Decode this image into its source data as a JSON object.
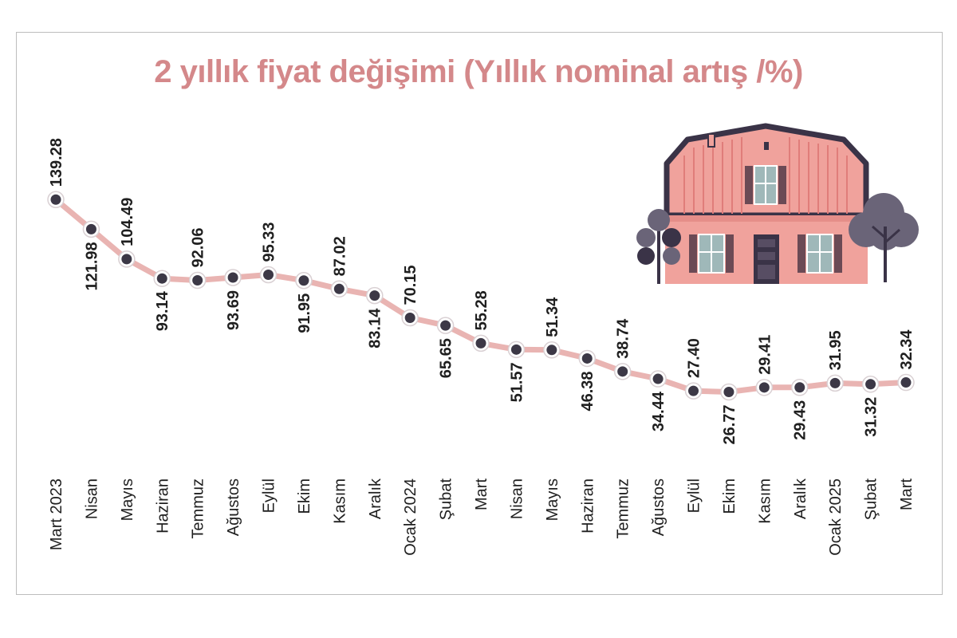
{
  "title": "2 yıllık fiyat değişimi (Yıllık nominal artış /%)",
  "colors": {
    "title": "#d4888a",
    "line": "#e9b4b2",
    "marker_fill": "#3c3846",
    "marker_ring": "#ffffff",
    "house_wall": "#f0a29c",
    "house_roof_line": "#3a3347"
  },
  "icons": [
    "house-illustration",
    "tree-icon"
  ],
  "chart_data": {
    "type": "line",
    "title": "2 yıllık fiyat değişimi (Yıllık nominal artış /%)",
    "xlabel": "",
    "ylabel": "",
    "grid": false,
    "legend": "none",
    "ylim": [
      20,
      145
    ],
    "categories": [
      "Mart 2023",
      "Nisan",
      "Mayıs",
      "Haziran",
      "Temmuz",
      "Ağustos",
      "Eylül",
      "Ekim",
      "Kasım",
      "Aralık",
      "Ocak 2024",
      "Şubat",
      "Mart",
      "Nisan",
      "Mayıs",
      "Haziran",
      "Temmuz",
      "Ağustos",
      "Eylül",
      "Ekim",
      "Kasım",
      "Aralık",
      "Ocak 2025",
      "Şubat",
      "Mart"
    ],
    "values": [
      139.28,
      121.98,
      104.49,
      93.14,
      92.06,
      93.69,
      95.33,
      91.95,
      87.02,
      83.14,
      70.15,
      65.65,
      55.28,
      51.57,
      51.34,
      46.38,
      38.74,
      34.44,
      27.4,
      26.77,
      29.41,
      29.43,
      31.95,
      31.32,
      32.34
    ],
    "value_labels": [
      "139.28",
      "121.98",
      "104.49",
      "93.14",
      "92.06",
      "93.69",
      "95.33",
      "91.95",
      "87.02",
      "83.14",
      "70.15",
      "65.65",
      "55.28",
      "51.57",
      "51.34",
      "46.38",
      "38.74",
      "34.44",
      "27.40",
      "26.77",
      "29.41",
      "29.43",
      "31.95",
      "31.32",
      "32.34"
    ],
    "label_side": [
      "above",
      "below",
      "above",
      "below",
      "above",
      "below",
      "above",
      "below",
      "above",
      "below",
      "above",
      "below",
      "above",
      "below",
      "above",
      "below",
      "above",
      "below",
      "above",
      "below",
      "above",
      "below",
      "above",
      "below",
      "above"
    ]
  }
}
